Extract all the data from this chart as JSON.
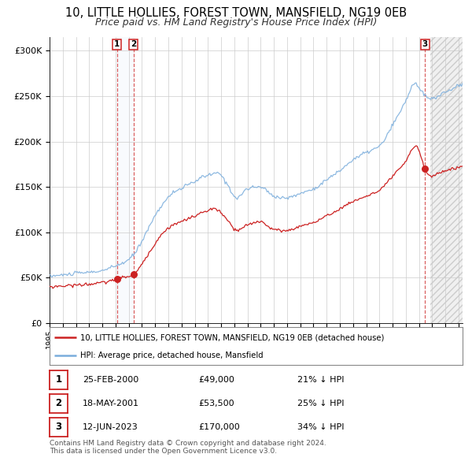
{
  "title": "10, LITTLE HOLLIES, FOREST TOWN, MANSFIELD, NG19 0EB",
  "subtitle": "Price paid vs. HM Land Registry's House Price Index (HPI)",
  "title_fontsize": 10.5,
  "subtitle_fontsize": 9,
  "ylabel_ticks": [
    "£0",
    "£50K",
    "£100K",
    "£150K",
    "£200K",
    "£250K",
    "£300K"
  ],
  "ytick_vals": [
    0,
    50000,
    100000,
    150000,
    200000,
    250000,
    300000
  ],
  "ylim": [
    0,
    315000
  ],
  "xlim_start": 1995.0,
  "xlim_end": 2026.3,
  "sale1_date": 2000.12,
  "sale1_price": 49000,
  "sale1_label": "1",
  "sale2_date": 2001.37,
  "sale2_price": 53500,
  "sale2_label": "2",
  "sale3_date": 2023.45,
  "sale3_price": 170000,
  "sale3_label": "3",
  "legend_line1": "10, LITTLE HOLLIES, FOREST TOWN, MANSFIELD, NG19 0EB (detached house)",
  "legend_line2": "HPI: Average price, detached house, Mansfield",
  "table_row1": [
    "1",
    "25-FEB-2000",
    "£49,000",
    "21% ↓ HPI"
  ],
  "table_row2": [
    "2",
    "18-MAY-2001",
    "£53,500",
    "25% ↓ HPI"
  ],
  "table_row3": [
    "3",
    "12-JUN-2023",
    "£170,000",
    "34% ↓ HPI"
  ],
  "footer_line1": "Contains HM Land Registry data © Crown copyright and database right 2024.",
  "footer_line2": "This data is licensed under the Open Government Licence v3.0.",
  "hpi_color": "#7aaddc",
  "price_color": "#cc2222",
  "bg_color": "#ffffff",
  "grid_color": "#cccccc",
  "shade_color": "#dde8f5",
  "future_shade_color": "#e8e8e8"
}
